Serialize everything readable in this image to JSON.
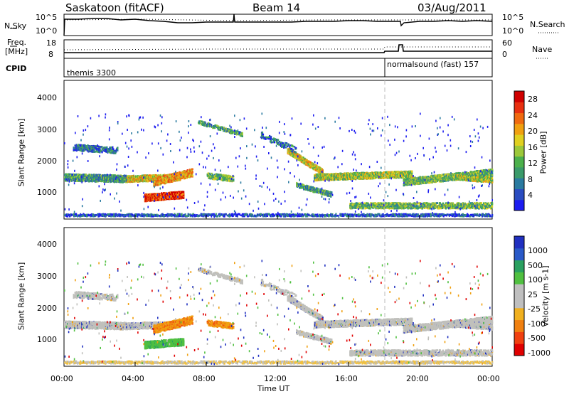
{
  "header": {
    "station": "Saskatoon (fitACF)",
    "beam": "Beam 14",
    "date": "03/Aug/2011"
  },
  "top_panels": {
    "nsky_label": "N.Sky",
    "nsky_ticks": [
      "10^5",
      "10^0"
    ],
    "nsearch_label": "N.Search",
    "nsearch_ticks": [
      "10^5",
      "10^0"
    ],
    "freq_label_1": "Freq.",
    "freq_label_2": "[MHz]",
    "freq_ticks": [
      "18",
      "8"
    ],
    "nave_label": "Nave",
    "nave_ticks": [
      "60",
      "0"
    ],
    "cpid_label": "CPID",
    "cpid_1": "themis 3300",
    "cpid_2": "normalsound (fast) 157"
  },
  "chart_data": [
    {
      "type": "heatmap",
      "name": "power",
      "ylabel": "Slant Range [km]",
      "y_ticks": [
        "1000",
        "2000",
        "3000",
        "4000"
      ],
      "ylim": [
        200,
        4600
      ],
      "colorbar_label": "Power [dB]",
      "colorbar_ticks": [
        "4",
        "8",
        "12",
        "16",
        "20",
        "24",
        "28"
      ],
      "colorbar_colors": [
        "#1c1cf0",
        "#2a4cc0",
        "#2a7aa0",
        "#3a9a6a",
        "#4cb04c",
        "#9cc83a",
        "#e0d020",
        "#f0a010",
        "#f06a10",
        "#e83010",
        "#d00000"
      ]
    },
    {
      "type": "heatmap",
      "name": "velocity",
      "ylabel": "Slant Range [km]",
      "y_ticks": [
        "1000",
        "2000",
        "3000",
        "4000"
      ],
      "ylim": [
        200,
        4600
      ],
      "colorbar_label": "Velocity [m s-1]",
      "colorbar_ticks": [
        "1000",
        "500",
        "100",
        "25",
        "-25",
        "-100",
        "-500",
        "-1000"
      ],
      "colorbar_colors": [
        "#2030c0",
        "#2a5ac8",
        "#2aa060",
        "#50c040",
        "#bfbfbf",
        "#bfbfbf",
        "#f0b020",
        "#f08010",
        "#f04010",
        "#e00000"
      ]
    }
  ],
  "x_axis": {
    "label": "Time UT",
    "ticks": [
      "00:00",
      "04:00",
      "08:00",
      "12:00",
      "16:00",
      "20:00",
      "00:00"
    ]
  }
}
